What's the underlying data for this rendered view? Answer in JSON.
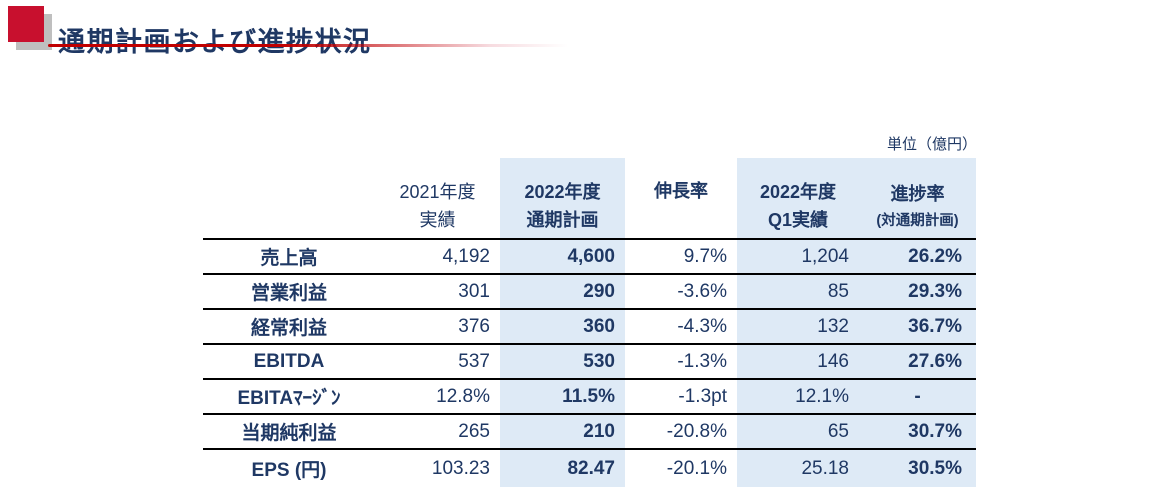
{
  "slide": {
    "title": "通期計画および進捗状況",
    "unit_note": "単位（億円）"
  },
  "colors": {
    "accent_red": "#C8102E",
    "navy_text": "#1F3864",
    "highlight_blue": "#DEEAF6",
    "shadow_gray": "#BFBFBF",
    "underline_red": "#C00000"
  },
  "table": {
    "headers": {
      "fy2021": {
        "line1": "2021年度",
        "line2": "実績"
      },
      "plan": {
        "line1": "2022年度",
        "line2": "通期計画"
      },
      "growth": {
        "line1": "伸長率"
      },
      "q1": {
        "line1": "2022年度",
        "line2": "Q1実績"
      },
      "progress": {
        "line1": "進捗率",
        "line2": "(対通期計画)"
      }
    },
    "rows": [
      {
        "label": "売上高",
        "fy2021": "4,192",
        "plan": "4,600",
        "growth": "9.7%",
        "q1": "1,204",
        "progress": "26.2%"
      },
      {
        "label": "営業利益",
        "fy2021": "301",
        "plan": "290",
        "growth": "-3.6%",
        "q1": "85",
        "progress": "29.3%"
      },
      {
        "label": "経常利益",
        "fy2021": "376",
        "plan": "360",
        "growth": "-4.3%",
        "q1": "132",
        "progress": "36.7%"
      },
      {
        "label": "EBITDA",
        "fy2021": "537",
        "plan": "530",
        "growth": "-1.3%",
        "q1": "146",
        "progress": "27.6%"
      },
      {
        "label": "EBITAﾏｰｼﾞﾝ",
        "fy2021": "12.8%",
        "plan": "11.5%",
        "growth": "-1.3pt",
        "q1": "12.1%",
        "progress": "-"
      },
      {
        "label": "当期純利益",
        "fy2021": "265",
        "plan": "210",
        "growth": "-20.8%",
        "q1": "65",
        "progress": "30.7%"
      },
      {
        "label": "EPS (円)",
        "fy2021": "103.23",
        "plan": "82.47",
        "growth": "-20.1%",
        "q1": "25.18",
        "progress": "30.5%"
      }
    ]
  }
}
